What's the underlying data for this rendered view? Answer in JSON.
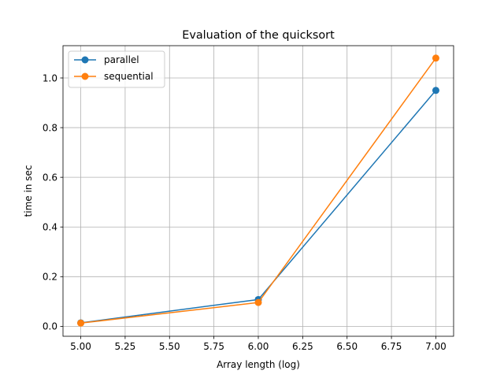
{
  "chart_data": {
    "type": "line",
    "title": "Evaluation of the quicksort",
    "xlabel": "Array length (log)",
    "ylabel": "time in sec",
    "xlim": [
      4.9,
      7.1
    ],
    "ylim": [
      -0.04,
      1.13
    ],
    "xticks": [
      "5.00",
      "5.25",
      "5.50",
      "5.75",
      "6.00",
      "6.25",
      "6.50",
      "6.75",
      "7.00"
    ],
    "xtick_values": [
      5.0,
      5.25,
      5.5,
      5.75,
      6.0,
      6.25,
      6.5,
      6.75,
      7.0
    ],
    "yticks": [
      "0.0",
      "0.2",
      "0.4",
      "0.6",
      "0.8",
      "1.0"
    ],
    "ytick_values": [
      0.0,
      0.2,
      0.4,
      0.6,
      0.8,
      1.0
    ],
    "grid": true,
    "legend_position": "top-left",
    "x": [
      5.0,
      6.0,
      7.0
    ],
    "series": [
      {
        "name": "parallel",
        "values": [
          0.014,
          0.108,
          0.95
        ],
        "color": "#1f77b4",
        "marker": "circle"
      },
      {
        "name": "sequential",
        "values": [
          0.013,
          0.096,
          1.08
        ],
        "color": "#ff7f0e",
        "marker": "circle"
      }
    ]
  }
}
